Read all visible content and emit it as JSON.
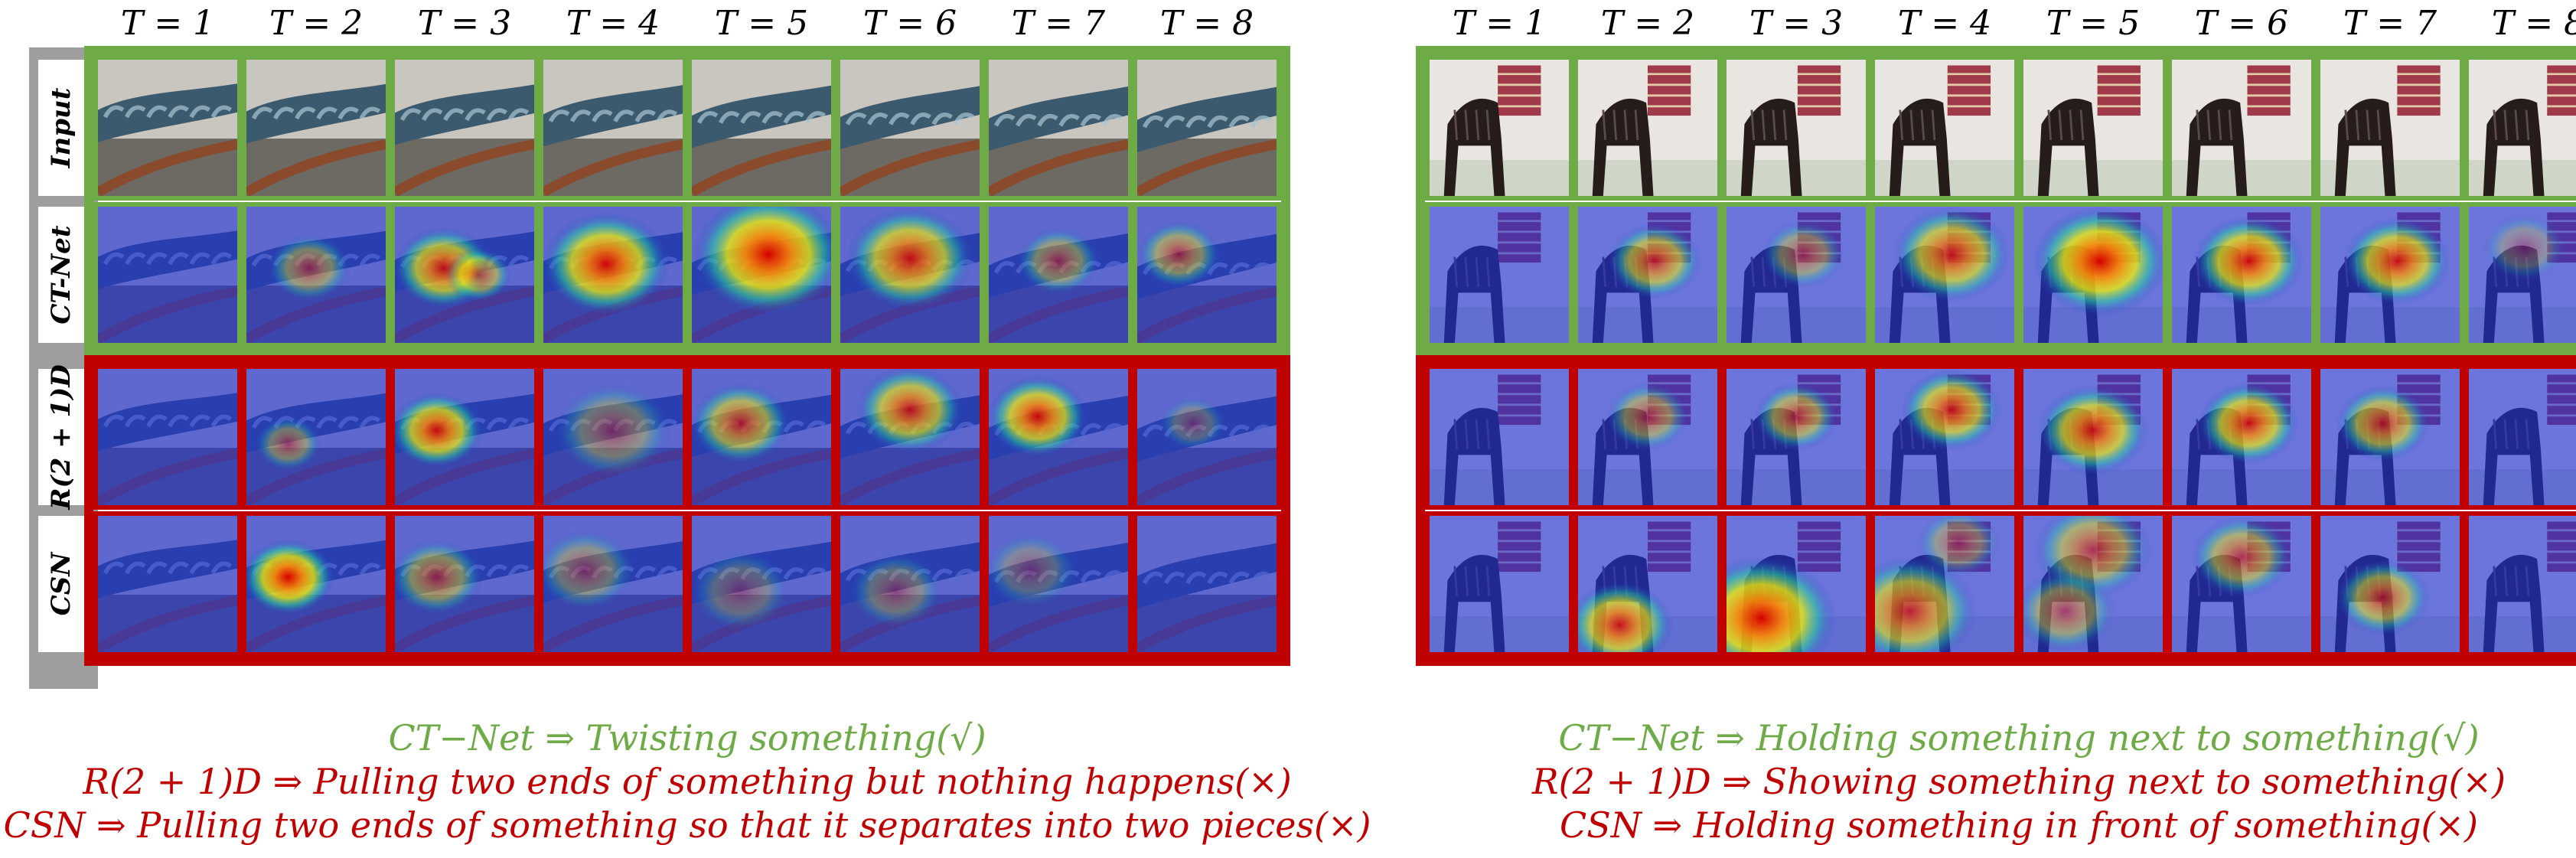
{
  "time_labels": [
    "T = 1",
    "T = 2",
    "T = 3",
    "T = 4",
    "T = 5",
    "T = 6",
    "T = 7",
    "T = 8"
  ],
  "row_labels": [
    "Input",
    "CT-Net",
    "R(2 + 1)D",
    "CSN"
  ],
  "colors": {
    "green": "#6eab47",
    "red": "#c00000",
    "gray": "#9e9e9e"
  },
  "panels": [
    {
      "scene": "arm-twisting",
      "captions": [
        {
          "text": "CT−Net ⇒ Twisting something(√)",
          "color": "#6eab47"
        },
        {
          "text": "R(2 + 1)D ⇒ Pulling two ends of something but nothing happens(×)",
          "color": "#c00000"
        },
        {
          "text": "CSN ⇒ Pulling two ends of something so that it separates into two pieces(×)",
          "color": "#c00000"
        }
      ]
    },
    {
      "scene": "chair-with-cloth",
      "captions": [
        {
          "text": "CT−Net ⇒ Holding something next to something(√)",
          "color": "#6eab47"
        },
        {
          "text": "R(2 + 1)D ⇒ Showing something next to something(×)",
          "color": "#c00000"
        },
        {
          "text": "CSN ⇒ Holding something in front of something(×)",
          "color": "#c00000"
        }
      ]
    }
  ]
}
